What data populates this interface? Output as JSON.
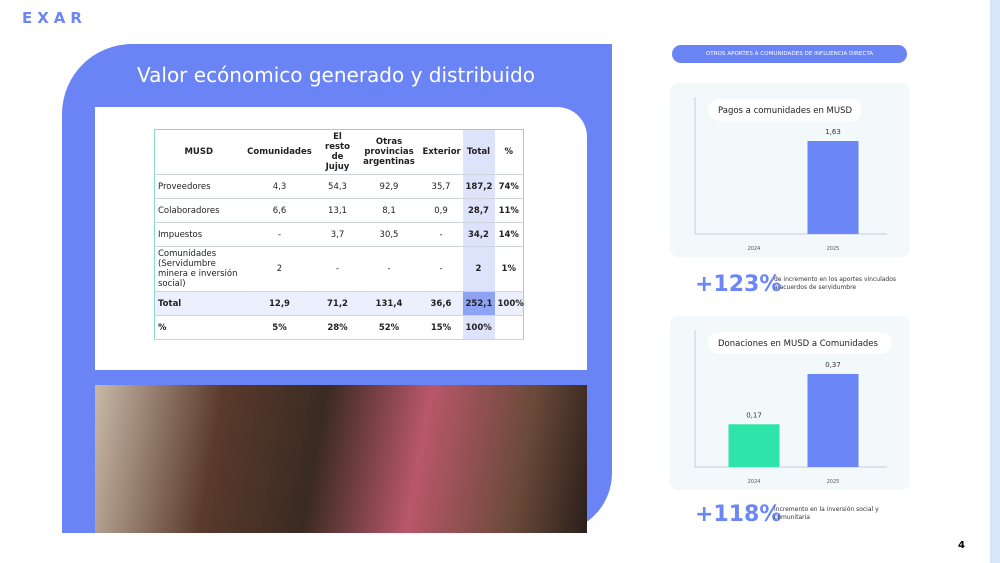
{
  "logo": "EXAR",
  "title": "Valor ecónomico generado y distribuido",
  "table": {
    "header": [
      "MUSD",
      "Comunidades",
      "El resto de Jujuy",
      "Otras provincias argentinas",
      "Exterior",
      "Total",
      "%"
    ],
    "rows": [
      [
        "Proveedores",
        "4,3",
        "54,3",
        "92,9",
        "35,7",
        "187,2",
        "74%"
      ],
      [
        "Colaboradores",
        "6,6",
        "13,1",
        "8,1",
        "0,9",
        "28,7",
        "11%"
      ],
      [
        "Impuestos",
        "-",
        "3,7",
        "30,5",
        "-",
        "34,2",
        "14%"
      ],
      [
        "Comunidades (Servidumbre minera e inversión social)",
        "2",
        "-",
        "-",
        "-",
        "2",
        "1%"
      ],
      [
        "Total",
        "12,9",
        "71,2",
        "131,4",
        "36,6",
        "252,1",
        "100%"
      ],
      [
        "%",
        "5%",
        "28%",
        "52%",
        "15%",
        "100%",
        ""
      ]
    ]
  },
  "section_label": "OTROS APORTES A COMUNIDADES DE INFLUENCIA DIRECTA",
  "charts": [
    {
      "type": "bar",
      "title": "Pagos a comunidades en MUSD",
      "categories": [
        "2024",
        "2025"
      ],
      "values": [
        null,
        1.63
      ],
      "value_labels": [
        null,
        "1,63"
      ],
      "color": "#6a86f7"
    },
    {
      "type": "bar",
      "title": "Donaciones en MUSD a Comunidades",
      "categories": [
        "2024",
        "2025"
      ],
      "values": [
        0.17,
        0.37
      ],
      "value_labels": [
        "0,17",
        "0,37"
      ],
      "colors": [
        "#2fe4a8",
        "#6a86f7"
      ]
    }
  ],
  "highlights": [
    {
      "value": "+123%",
      "text": "de incremento en los aportes vinculados a acuerdos de servidumbre"
    },
    {
      "value": "+118%",
      "text": "incremento en la inversión social y comunitaria"
    }
  ],
  "page_number": "4"
}
